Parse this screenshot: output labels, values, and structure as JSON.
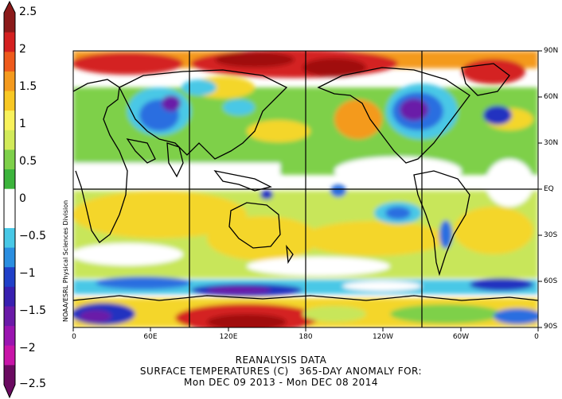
{
  "colorbar": {
    "labels": [
      "2.5",
      "2",
      "1.5",
      "1",
      "0.5",
      "0",
      "−0.5",
      "−1",
      "−1.5",
      "−2",
      "−2.5"
    ],
    "bands": [
      "#8b1a1a",
      "#d42020",
      "#ee5a1c",
      "#f49a1e",
      "#f8c824",
      "#f8f25c",
      "#d2ea5a",
      "#7ed04a",
      "#3cb43c",
      "#ffffff",
      "#ffffff",
      "#48c8e6",
      "#2a8ee0",
      "#2040c8",
      "#3820b0",
      "#6a1aa8",
      "#9a14b0",
      "#c814a8",
      "#6a0a60"
    ]
  },
  "map": {
    "lat_labels": [
      "90N",
      "60N",
      "30N",
      "EQ",
      "30S",
      "60S",
      "90S"
    ],
    "lon_labels": [
      "0",
      "60E",
      "120E",
      "180",
      "120W",
      "60W",
      "0"
    ],
    "credit": "NOAA/ESRL Physical Sciences Division",
    "colors": {
      "white": "#ffffff",
      "green": "#7ed04a",
      "lightgreen": "#c8e65a",
      "yellow": "#f4d62a",
      "orange": "#f49a1e",
      "red": "#d42020",
      "darkred": "#a01010",
      "cyan": "#48c8e6",
      "blue": "#2a6ee0",
      "darkblue": "#2030c0",
      "purple": "#6a1aa8"
    }
  },
  "title": {
    "line1": "REANALYSIS DATA",
    "line2": "SURFACE TEMPERATURES (C)   365-DAY ANOMALY FOR:",
    "line3": "Mon DEC 09 2013 - Mon DEC 08 2014"
  }
}
